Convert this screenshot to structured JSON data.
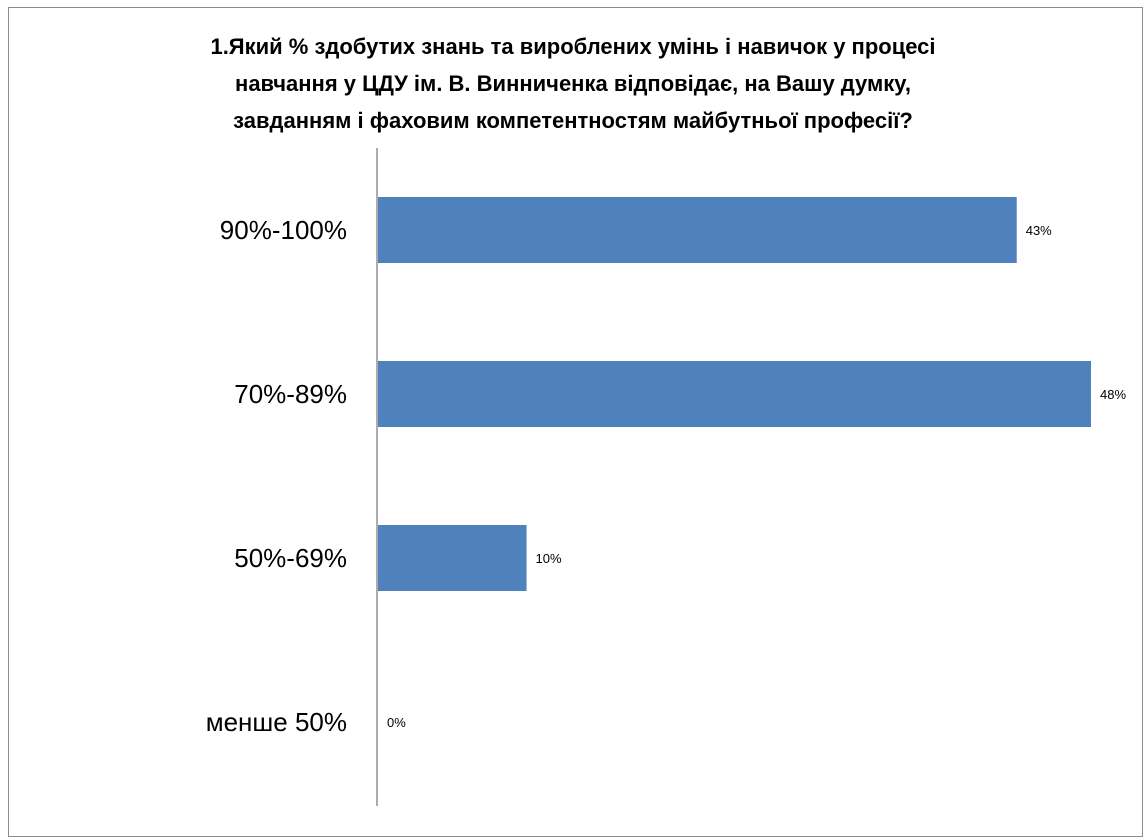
{
  "chart_data": {
    "type": "bar",
    "orientation": "horizontal",
    "title_lines": [
      "1.Який % здобутих знань та вироблених умінь і навичок у процесі",
      "навчання у ЦДУ ім. В. Винниченка відповідає, на Вашу думку,",
      "завданням і фаховим компетентностям майбутньої професії?"
    ],
    "categories": [
      "90%-100%",
      "70%-89%",
      "50%-69%",
      "менше 50%"
    ],
    "values": [
      43,
      48,
      10,
      0
    ],
    "data_labels": [
      "43%",
      "48%",
      "10%",
      "0%"
    ],
    "value_unit": "%",
    "xlim": [
      0,
      50
    ],
    "grid": false,
    "legend": "none",
    "bar_color": "#4f81bd",
    "axis_color": "#808080"
  }
}
